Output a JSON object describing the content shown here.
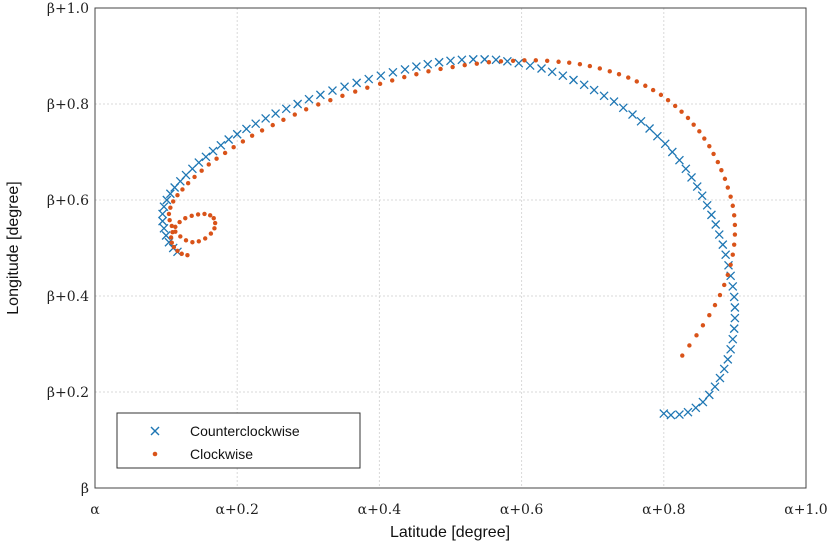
{
  "chart_data": {
    "type": "scatter",
    "xlabel": "Latitude [degree]",
    "ylabel": "Longitude [degree]",
    "xlim": [
      0,
      1
    ],
    "ylim": [
      0,
      1
    ],
    "grid": true,
    "legend_position": "bottom-left",
    "x_ticks": [
      {
        "value": 0,
        "label": "α"
      },
      {
        "value": 0.2,
        "label": "α+0.2"
      },
      {
        "value": 0.4,
        "label": "α+0.4"
      },
      {
        "value": 0.6,
        "label": "α+0.6"
      },
      {
        "value": 0.8,
        "label": "α+0.8"
      },
      {
        "value": 1.0,
        "label": "α+1.0"
      }
    ],
    "y_ticks": [
      {
        "value": 0,
        "label": "β"
      },
      {
        "value": 0.2,
        "label": "β+0.2"
      },
      {
        "value": 0.4,
        "label": "β+0.4"
      },
      {
        "value": 0.6,
        "label": "β+0.6"
      },
      {
        "value": 0.8,
        "label": "β+0.8"
      },
      {
        "value": 1.0,
        "label": "β+1.0"
      }
    ],
    "series": [
      {
        "name": "Counterclockwise",
        "marker": "x",
        "color": "#1f77b4",
        "x": [
          0.116,
          0.11,
          0.104,
          0.1,
          0.097,
          0.095,
          0.095,
          0.097,
          0.101,
          0.106,
          0.112,
          0.12,
          0.128,
          0.137,
          0.146,
          0.156,
          0.166,
          0.177,
          0.188,
          0.2,
          0.213,
          0.226,
          0.24,
          0.254,
          0.269,
          0.285,
          0.301,
          0.317,
          0.334,
          0.351,
          0.368,
          0.385,
          0.402,
          0.419,
          0.436,
          0.452,
          0.468,
          0.484,
          0.5,
          0.516,
          0.532,
          0.548,
          0.564,
          0.58,
          0.596,
          0.612,
          0.628,
          0.643,
          0.658,
          0.673,
          0.688,
          0.702,
          0.716,
          0.73,
          0.743,
          0.756,
          0.768,
          0.78,
          0.791,
          0.802,
          0.812,
          0.822,
          0.831,
          0.839,
          0.847,
          0.854,
          0.861,
          0.867,
          0.873,
          0.878,
          0.883,
          0.887,
          0.891,
          0.894,
          0.897,
          0.899,
          0.9,
          0.9,
          0.899,
          0.897,
          0.894,
          0.89,
          0.885,
          0.879,
          0.872,
          0.864,
          0.855,
          0.845,
          0.834,
          0.822,
          0.81,
          0.8
        ],
        "y": [
          0.492,
          0.5,
          0.512,
          0.526,
          0.541,
          0.556,
          0.571,
          0.586,
          0.6,
          0.613,
          0.626,
          0.639,
          0.652,
          0.665,
          0.678,
          0.69,
          0.702,
          0.714,
          0.726,
          0.737,
          0.748,
          0.759,
          0.77,
          0.78,
          0.79,
          0.8,
          0.81,
          0.819,
          0.828,
          0.836,
          0.844,
          0.852,
          0.859,
          0.866,
          0.872,
          0.878,
          0.883,
          0.887,
          0.89,
          0.892,
          0.893,
          0.893,
          0.892,
          0.889,
          0.885,
          0.88,
          0.874,
          0.867,
          0.859,
          0.85,
          0.84,
          0.829,
          0.817,
          0.805,
          0.792,
          0.778,
          0.764,
          0.749,
          0.733,
          0.717,
          0.7,
          0.683,
          0.665,
          0.647,
          0.628,
          0.609,
          0.589,
          0.569,
          0.549,
          0.528,
          0.507,
          0.486,
          0.464,
          0.442,
          0.42,
          0.398,
          0.376,
          0.354,
          0.332,
          0.31,
          0.289,
          0.268,
          0.248,
          0.229,
          0.211,
          0.194,
          0.179,
          0.167,
          0.158,
          0.153,
          0.152,
          0.155
        ]
      },
      {
        "name": "Clockwise",
        "marker": "o",
        "color": "#d95319",
        "x": [
          0.13,
          0.122,
          0.116,
          0.111,
          0.108,
          0.107,
          0.109,
          0.113,
          0.119,
          0.127,
          0.136,
          0.145,
          0.154,
          0.162,
          0.167,
          0.169,
          0.168,
          0.163,
          0.155,
          0.146,
          0.137,
          0.128,
          0.12,
          0.113,
          0.108,
          0.105,
          0.104,
          0.106,
          0.11,
          0.116,
          0.123,
          0.131,
          0.14,
          0.15,
          0.16,
          0.171,
          0.183,
          0.195,
          0.208,
          0.221,
          0.235,
          0.25,
          0.265,
          0.281,
          0.297,
          0.314,
          0.331,
          0.348,
          0.366,
          0.383,
          0.401,
          0.418,
          0.435,
          0.452,
          0.469,
          0.486,
          0.503,
          0.52,
          0.537,
          0.554,
          0.571,
          0.588,
          0.604,
          0.62,
          0.636,
          0.652,
          0.667,
          0.682,
          0.696,
          0.71,
          0.724,
          0.737,
          0.75,
          0.762,
          0.774,
          0.785,
          0.796,
          0.806,
          0.816,
          0.825,
          0.834,
          0.842,
          0.85,
          0.857,
          0.864,
          0.87,
          0.876,
          0.881,
          0.886,
          0.89,
          0.894,
          0.897,
          0.899,
          0.9,
          0.9,
          0.899,
          0.897,
          0.894,
          0.89,
          0.885,
          0.879,
          0.872,
          0.864,
          0.855,
          0.846,
          0.836,
          0.826
        ],
        "y": [
          0.485,
          0.488,
          0.494,
          0.502,
          0.511,
          0.522,
          0.533,
          0.544,
          0.554,
          0.562,
          0.567,
          0.57,
          0.571,
          0.568,
          0.562,
          0.552,
          0.541,
          0.53,
          0.52,
          0.514,
          0.512,
          0.516,
          0.524,
          0.534,
          0.546,
          0.558,
          0.571,
          0.584,
          0.597,
          0.61,
          0.622,
          0.635,
          0.648,
          0.661,
          0.674,
          0.686,
          0.698,
          0.71,
          0.722,
          0.734,
          0.745,
          0.756,
          0.767,
          0.778,
          0.789,
          0.799,
          0.808,
          0.817,
          0.826,
          0.834,
          0.842,
          0.849,
          0.856,
          0.862,
          0.868,
          0.873,
          0.877,
          0.881,
          0.884,
          0.887,
          0.889,
          0.89,
          0.891,
          0.891,
          0.89,
          0.888,
          0.886,
          0.883,
          0.879,
          0.874,
          0.868,
          0.862,
          0.855,
          0.847,
          0.838,
          0.829,
          0.819,
          0.808,
          0.796,
          0.784,
          0.771,
          0.757,
          0.743,
          0.728,
          0.712,
          0.696,
          0.679,
          0.662,
          0.644,
          0.626,
          0.607,
          0.588,
          0.568,
          0.548,
          0.528,
          0.507,
          0.486,
          0.465,
          0.444,
          0.423,
          0.402,
          0.381,
          0.36,
          0.339,
          0.318,
          0.297,
          0.276
        ]
      }
    ]
  }
}
